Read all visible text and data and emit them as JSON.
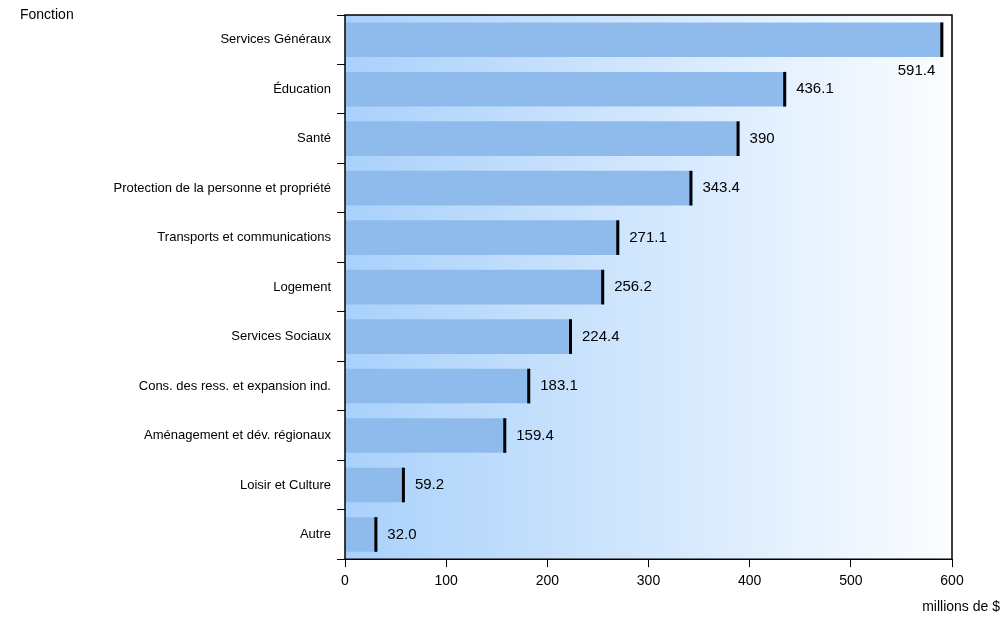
{
  "chart_data": {
    "type": "bar",
    "orientation": "horizontal",
    "ylabel": "Fonction",
    "xlabel": "millions de $",
    "categories": [
      "Services Généraux",
      "Éducation",
      "Santé",
      "Protection de la personne et propriété",
      "Transports et communications",
      "Logement",
      "Services Sociaux",
      "Cons. des ress. et expansion ind.",
      "Aménagement et dév. régionaux",
      "Loisir et Culture",
      "Autre"
    ],
    "values": [
      591.4,
      436.1,
      390,
      343.4,
      271.1,
      256.2,
      224.4,
      183.1,
      159.4,
      59.2,
      32.0
    ],
    "value_labels": [
      "591.4",
      "436.1",
      "390",
      "343.4",
      "271.1",
      "256.2",
      "224.4",
      "183.1",
      "159.4",
      "59.2",
      "32.0"
    ],
    "color": "#8fbbec",
    "xlim": [
      0,
      600
    ],
    "xticks": [
      0,
      100,
      200,
      300,
      400,
      500,
      600
    ],
    "grid": false,
    "legend": false
  }
}
